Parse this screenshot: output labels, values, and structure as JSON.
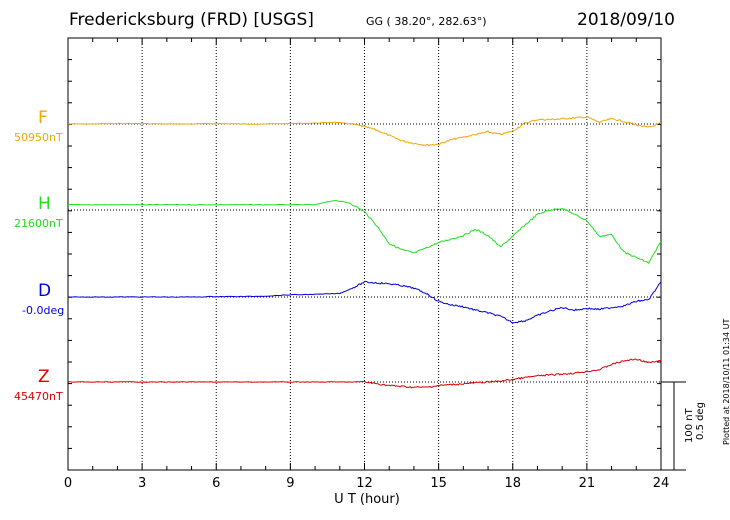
{
  "header": {
    "title": "Fredericksburg (FRD)  [USGS]",
    "coords": "GG ( 38.20°, 282.63°)",
    "date": "2018/09/10"
  },
  "footer": {
    "plotted": "Plotted at 2018/10/11 01:34 UT"
  },
  "scale_bar": {
    "label_nt": "100 nT",
    "label_deg": "0.5 deg"
  },
  "colors": {
    "F": "#f0a800",
    "H": "#22dd22",
    "D": "#0000dd",
    "Z": "#dd0000"
  },
  "chart_data": {
    "type": "line",
    "xlabel": "U T (hour)",
    "xlim": [
      0,
      24
    ],
    "xticks": [
      0,
      3,
      6,
      9,
      12,
      15,
      18,
      21,
      24
    ],
    "grid": true,
    "series": [
      {
        "name": "F",
        "baseline_label": "50950nT",
        "x": [
          0,
          1,
          2,
          3,
          4,
          5,
          6,
          7,
          8,
          9,
          10,
          10.8,
          11.5,
          12,
          12.5,
          13,
          13.5,
          14,
          14.5,
          15,
          15.5,
          16,
          16.5,
          17,
          17.5,
          18,
          18.5,
          19,
          19.5,
          20,
          20.5,
          21,
          21.5,
          22,
          22.5,
          23,
          23.5,
          24
        ],
        "y": [
          0,
          0,
          0.5,
          0.5,
          0,
          0,
          0.5,
          0,
          0,
          0.5,
          1,
          2,
          0,
          -3,
          -7,
          -13,
          -19,
          -22,
          -24,
          -23,
          -18,
          -15,
          -12,
          -9,
          -12,
          -8,
          1,
          5,
          5,
          6,
          7,
          8,
          2,
          6,
          3,
          -1,
          -4,
          1
        ]
      },
      {
        "name": "H",
        "baseline_label": "21600nT",
        "x": [
          0,
          1,
          2,
          3,
          4,
          5,
          6,
          7,
          8,
          9,
          10,
          10.8,
          11.4,
          12,
          12.5,
          13,
          13.5,
          14,
          14.5,
          15,
          15.5,
          16,
          16.5,
          17,
          17.5,
          18,
          18.5,
          19,
          19.5,
          20,
          20.5,
          21,
          21.5,
          22,
          22.5,
          23,
          23.5,
          24
        ],
        "y": [
          6,
          6,
          6,
          6,
          6,
          6,
          6,
          6,
          6,
          6,
          6,
          11,
          8,
          -2,
          -18,
          -38,
          -45,
          -49,
          -43,
          -37,
          -33,
          -29,
          -22,
          -29,
          -42,
          -30,
          -17,
          -5,
          0,
          2,
          -5,
          -12,
          -30,
          -28,
          -48,
          -54,
          -60,
          -36
        ]
      },
      {
        "name": "D",
        "baseline_label": "-0.0deg",
        "x": [
          0,
          1,
          2,
          3,
          4,
          5,
          6,
          7,
          8,
          9,
          10,
          11,
          11.5,
          12,
          12.5,
          13,
          13.5,
          14,
          14.5,
          15,
          15.5,
          16,
          16.5,
          17,
          17.5,
          18,
          18.5,
          19,
          19.5,
          20,
          20.5,
          21,
          21.5,
          22,
          22.5,
          23,
          23.5,
          24
        ],
        "y": [
          0,
          0,
          0,
          0,
          0,
          0,
          0.5,
          0.5,
          1,
          2.5,
          3,
          4,
          10,
          17,
          16,
          15,
          13,
          10,
          4,
          -5,
          -9,
          -11,
          -15,
          -18,
          -22,
          -29,
          -27,
          -21,
          -16,
          -12,
          -15,
          -13,
          -14,
          -12,
          -10,
          -5,
          -3,
          17
        ]
      },
      {
        "name": "Z",
        "baseline_label": "45470nT",
        "x": [
          0,
          1,
          2,
          3,
          4,
          5,
          6,
          7,
          8,
          9,
          10,
          11,
          12,
          12.5,
          13,
          13.5,
          14,
          14.5,
          15,
          15.5,
          16,
          16.5,
          17,
          17.5,
          18,
          18.5,
          19,
          19.5,
          20,
          20.5,
          21,
          21.5,
          22,
          22.5,
          23,
          23.5,
          24
        ],
        "y": [
          0,
          0,
          0,
          0,
          0,
          0,
          0,
          0,
          0,
          0,
          0,
          0,
          0,
          -2,
          -4,
          -5,
          -6,
          -6,
          -4,
          -3,
          -2,
          -1,
          0,
          1,
          3,
          5,
          7,
          8,
          9,
          10,
          12,
          14,
          20,
          24,
          26,
          22,
          24
        ]
      }
    ]
  }
}
